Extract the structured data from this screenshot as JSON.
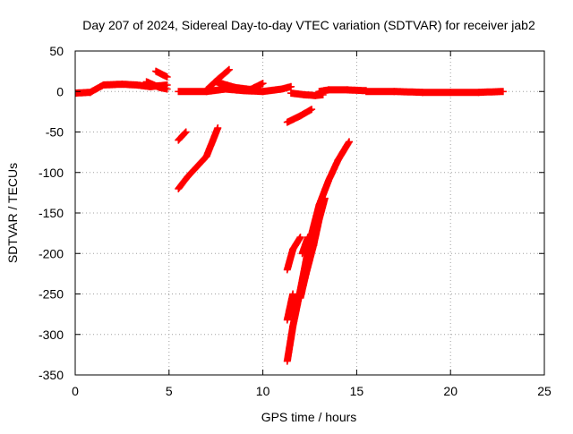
{
  "chart_data": {
    "type": "scatter",
    "title": "Day 207 of 2024, Sidereal Day-to-day VTEC variation (SDTVAR) for receiver jab2",
    "xlabel": "GPS time / hours",
    "ylabel": "SDTVAR / TECUs",
    "xlim": [
      0,
      25
    ],
    "ylim": [
      -350,
      50
    ],
    "xticks": [
      0,
      5,
      10,
      15,
      20,
      25
    ],
    "yticks": [
      50,
      0,
      -50,
      -100,
      -150,
      -200,
      -250,
      -300,
      -350
    ],
    "grid": true,
    "legend": "none",
    "series": [
      {
        "color": "#ff0000",
        "tracks": [
          [
            [
              0.0,
              -2
            ],
            [
              0.8,
              -1
            ],
            [
              1.5,
              8
            ],
            [
              2.5,
              9
            ],
            [
              3.3,
              8
            ],
            [
              4.0,
              6
            ],
            [
              4.9,
              8
            ]
          ],
          [
            [
              3.8,
              12
            ],
            [
              4.5,
              5
            ],
            [
              4.9,
              3
            ]
          ],
          [
            [
              4.3,
              25
            ],
            [
              4.9,
              18
            ]
          ],
          [
            [
              5.5,
              0
            ],
            [
              7.0,
              0
            ],
            [
              8.0,
              3
            ],
            [
              9.0,
              1
            ],
            [
              10.0,
              0
            ],
            [
              11.0,
              3
            ],
            [
              11.5,
              6
            ]
          ],
          [
            [
              7.0,
              2
            ],
            [
              7.6,
              15
            ],
            [
              8.2,
              27
            ]
          ],
          [
            [
              7.5,
              12
            ],
            [
              8.5,
              5
            ],
            [
              9.5,
              2
            ]
          ],
          [
            [
              9.3,
              2
            ],
            [
              10.0,
              10
            ]
          ],
          [
            [
              11.5,
              -2
            ],
            [
              12.2,
              -4
            ],
            [
              12.8,
              -5
            ],
            [
              13.2,
              -4
            ]
          ],
          [
            [
              13.0,
              0
            ],
            [
              13.5,
              2
            ],
            [
              14.5,
              2
            ],
            [
              15.5,
              1
            ]
          ],
          [
            [
              15.5,
              0
            ],
            [
              17.0,
              0
            ],
            [
              18.5,
              -1
            ],
            [
              20.0,
              -1
            ],
            [
              21.5,
              -1
            ],
            [
              22.8,
              0
            ]
          ],
          [
            [
              5.5,
              -60
            ],
            [
              5.9,
              -50
            ]
          ],
          [
            [
              5.5,
              -120
            ],
            [
              6.0,
              -105
            ],
            [
              7.0,
              -80
            ],
            [
              7.6,
              -45
            ]
          ],
          [
            [
              11.3,
              -38
            ],
            [
              12.0,
              -30
            ],
            [
              12.6,
              -22
            ]
          ],
          [
            [
              11.3,
              -333
            ],
            [
              11.6,
              -290
            ],
            [
              12.0,
              -245
            ],
            [
              12.5,
              -185
            ],
            [
              13.0,
              -140
            ],
            [
              13.5,
              -110
            ],
            [
              14.0,
              -85
            ],
            [
              14.6,
              -62
            ]
          ],
          [
            [
              11.3,
              -220
            ],
            [
              11.6,
              -195
            ],
            [
              12.0,
              -180
            ]
          ],
          [
            [
              11.3,
              -282
            ],
            [
              11.6,
              -250
            ]
          ],
          [
            [
              12.0,
              -255
            ],
            [
              12.3,
              -225
            ],
            [
              12.7,
              -190
            ],
            [
              13.0,
              -158
            ],
            [
              13.3,
              -132
            ]
          ],
          [
            [
              12.1,
              -200
            ],
            [
              12.4,
              -180
            ]
          ]
        ]
      }
    ]
  }
}
